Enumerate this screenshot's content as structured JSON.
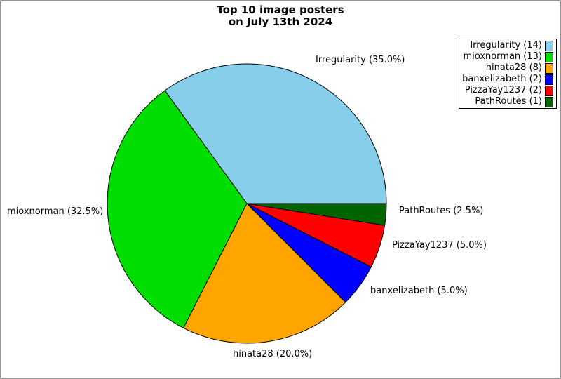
{
  "frame": {
    "background": "#ffffff",
    "border_color": "#919191"
  },
  "title": {
    "line1": "Top 10 image posters",
    "line2": "on July 13th 2024"
  },
  "chart_data": {
    "type": "pie",
    "title": "Top 10 image posters on July 13th 2024",
    "start_angle_deg": 0,
    "direction": "counterclockwise",
    "legend_position": "top-right",
    "slices": [
      {
        "label": "Irregularity",
        "count": 14,
        "percent": 35.0,
        "color": "#87CEEB",
        "slice_label": "Irregularity (35.0%)",
        "legend_label": "Irregularity (14)"
      },
      {
        "label": "mioxnorman",
        "count": 13,
        "percent": 32.5,
        "color": "#00DD00",
        "slice_label": "mioxnorman (32.5%)",
        "legend_label": "mioxnorman (13)"
      },
      {
        "label": "hinata28",
        "count": 8,
        "percent": 20.0,
        "color": "#FFA500",
        "slice_label": "hinata28 (20.0%)",
        "legend_label": "hinata28 (8)"
      },
      {
        "label": "banxelizabeth",
        "count": 2,
        "percent": 5.0,
        "color": "#0000FF",
        "slice_label": "banxelizabeth (5.0%)",
        "legend_label": "banxelizabeth (2)"
      },
      {
        "label": "PizzaYay1237",
        "count": 2,
        "percent": 5.0,
        "color": "#FF0000",
        "slice_label": "PizzaYay1237 (5.0%)",
        "legend_label": "PizzaYay1237 (2)"
      },
      {
        "label": "PathRoutes",
        "count": 1,
        "percent": 2.5,
        "color": "#006400",
        "slice_label": "PathRoutes (2.5%)",
        "legend_label": "PathRoutes (1)"
      }
    ]
  }
}
